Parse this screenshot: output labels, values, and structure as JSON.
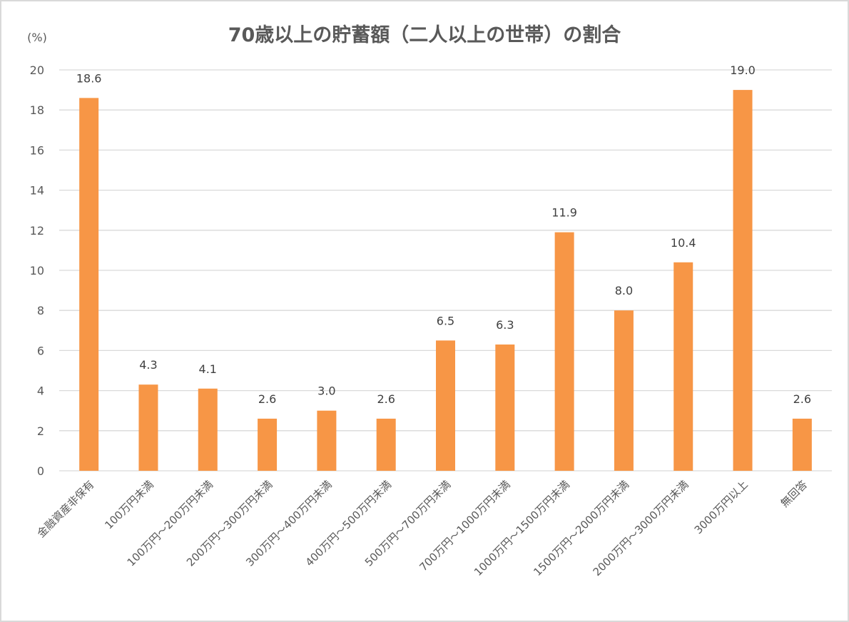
{
  "chart_data": {
    "type": "bar",
    "title": "70歳以上の貯蓄額（二人以上の世帯）の割合",
    "ylabel": "(%)",
    "xlabel": "",
    "ylim": [
      0,
      20
    ],
    "yticks": [
      "0",
      "2",
      "4",
      "6",
      "8",
      "10",
      "12",
      "14",
      "16",
      "18",
      "20"
    ],
    "grid": true,
    "bar_color": "#F79646",
    "categories": [
      "金融資産非保有",
      "100万円未満",
      "100万円～200万円未満",
      "200万円～300万円未満",
      "300万円～400万円未満",
      "400万円～500万円未満",
      "500万円～700万円未満",
      "700万円～1000万円未満",
      "1000万円～1500万円未満",
      "1500万円～2000万円未満",
      "2000万円～3000万円未満",
      "3000万円以上",
      "無回答"
    ],
    "values": [
      18.6,
      4.3,
      4.1,
      2.6,
      3.0,
      2.6,
      6.5,
      6.3,
      11.9,
      8.0,
      10.4,
      19.0,
      2.6
    ],
    "data_labels": [
      "18.6",
      "4.3",
      "4.1",
      "2.6",
      "3.0",
      "2.6",
      "6.5",
      "6.3",
      "11.9",
      "8.0",
      "10.4",
      "19.0",
      "2.6"
    ]
  }
}
